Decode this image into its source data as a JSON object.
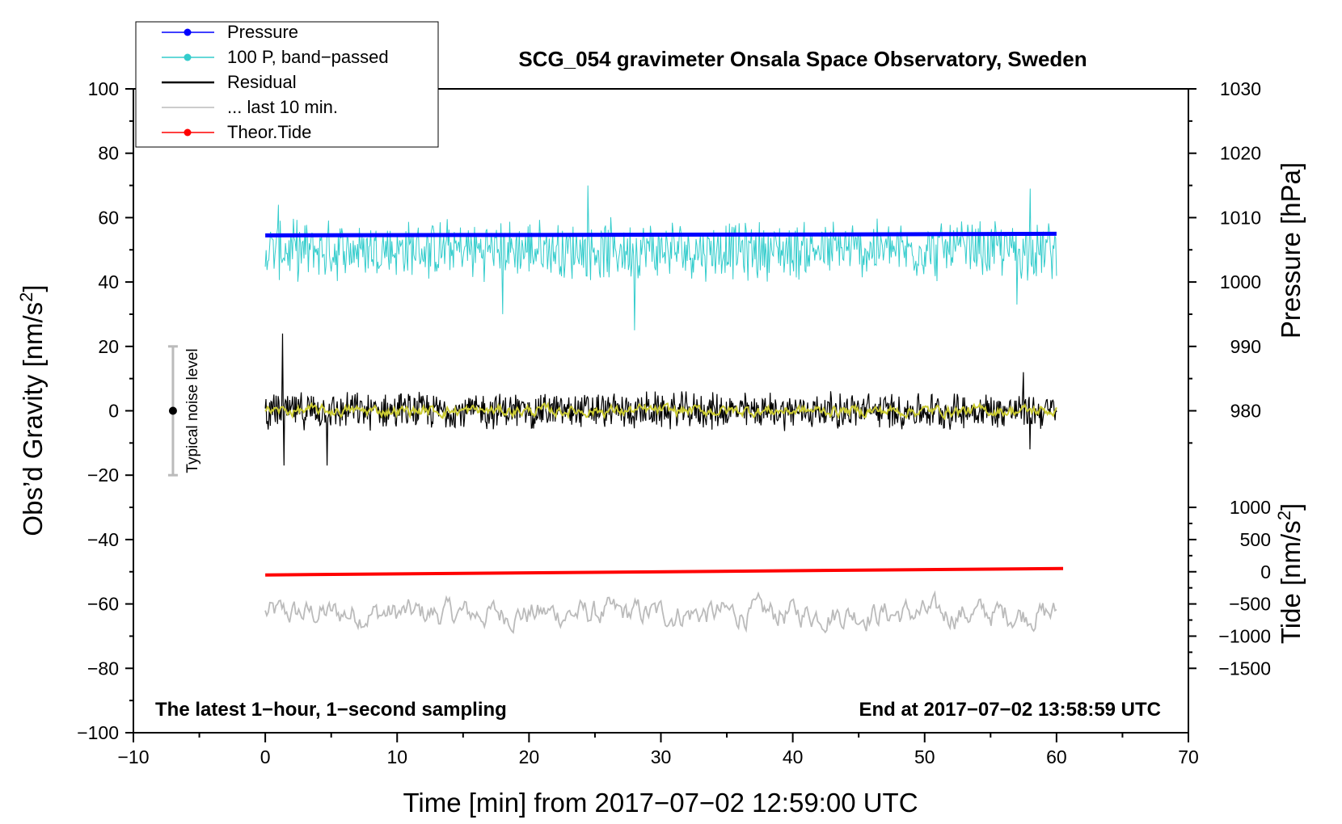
{
  "chart_data": {
    "type": "line",
    "title": "SCG_054 gravimeter Onsala Space Observatory, Sweden",
    "xlabel": "Time [min] from 2017−07−02 12:59:00 UTC",
    "ylabel_left": "Obs’d Gravity [nm/s²]",
    "ylabel_right_pressure": "Pressure [hPa]",
    "ylabel_right_tide": "Tide [nm/s²]",
    "xlim": [
      -10,
      70
    ],
    "ylim": [
      -100,
      100
    ],
    "x_ticks": [
      -10,
      0,
      10,
      20,
      30,
      40,
      50,
      60,
      70
    ],
    "y_ticks": [
      -100,
      -80,
      -60,
      -40,
      -20,
      0,
      20,
      40,
      60,
      80,
      100
    ],
    "pressure_axis": {
      "ticks": [
        980,
        990,
        1000,
        1010,
        1020,
        1030
      ],
      "ref_value": 1010,
      "ref_gravity": 60,
      "units_per_hpa": 2.0
    },
    "tide_axis": {
      "ticks": [
        -1500,
        -1000,
        -500,
        0,
        500,
        1000
      ],
      "ref_value": 0,
      "ref_gravity": -50,
      "units_per_tide": 0.02
    },
    "tick_labels": {
      "x": [
        "−10",
        "0",
        "10",
        "20",
        "30",
        "40",
        "50",
        "60",
        "70"
      ],
      "y": [
        "−100",
        "−80",
        "−60",
        "−40",
        "−20",
        "0",
        "20",
        "40",
        "60",
        "80",
        "100"
      ],
      "pressure": [
        "980",
        "990",
        "1000",
        "1010",
        "1020",
        "1030"
      ],
      "tide": [
        "−1500",
        "−1000",
        "−500",
        "0",
        "500",
        "1000"
      ]
    },
    "legend": [
      {
        "label": "Pressure",
        "color": "#0000ff",
        "marker": true
      },
      {
        "label": "100 P, band−passed",
        "color": "#33cccc",
        "marker": true
      },
      {
        "label": "Residual",
        "color": "#000000",
        "marker": false
      },
      {
        "label": "... last 10 min.",
        "color": "#bbbbbb",
        "marker": false
      },
      {
        "label": "Theor.Tide",
        "color": "#ff0000",
        "marker": true
      }
    ],
    "series": [
      {
        "name": "Pressure",
        "color": "#0000ff",
        "x": [
          0.0,
          15,
          30,
          45,
          60.0
        ],
        "y": [
          54.5,
          54.6,
          54.7,
          54.8,
          55.0
        ]
      },
      {
        "name": "100 P, band−passed",
        "color": "#33cccc",
        "x_range": [
          0.0,
          60.0
        ],
        "center": 50,
        "spread": 8,
        "peaks": [
          [
            1.0,
            64
          ],
          [
            24.5,
            70
          ],
          [
            28,
            25
          ],
          [
            18,
            30
          ],
          [
            58,
            69
          ],
          [
            57,
            33
          ]
        ]
      },
      {
        "name": "Residual",
        "color": "#000000",
        "x_range": [
          0.0,
          60.0
        ],
        "center": 0,
        "spread": 5,
        "peaks": [
          [
            1.3,
            24
          ],
          [
            1.4,
            -17
          ],
          [
            4.7,
            -17
          ],
          [
            57.5,
            12
          ],
          [
            58.0,
            -12
          ]
        ]
      },
      {
        "name": "Residual smoothed",
        "color": "#cccc33",
        "x_range": [
          0.0,
          60.0
        ],
        "center": 0,
        "spread": 2
      },
      {
        "name": "... last 10 min.",
        "color": "#bbbbbb",
        "x_range": [
          0.0,
          60.0
        ],
        "center": -63,
        "spread": 5,
        "min": -75,
        "max": -50
      },
      {
        "name": "Theor.Tide",
        "color": "#ff0000",
        "x": [
          0.0,
          60.5
        ],
        "y": [
          -51,
          -49
        ]
      }
    ],
    "noise_level": {
      "label": "Typical noise level",
      "x": -7,
      "center": 0,
      "low": -20,
      "high": 20
    },
    "annotations": {
      "bottom_left": "The latest 1−hour, 1−second sampling",
      "bottom_right": "End at 2017−07−02 13:58:59 UTC"
    }
  }
}
